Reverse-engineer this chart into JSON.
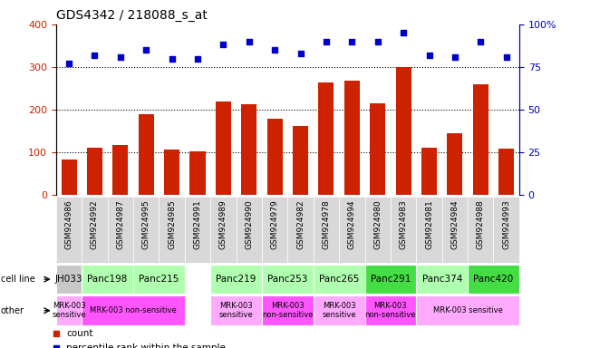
{
  "title": "GDS4342 / 218088_s_at",
  "gsm_labels": [
    "GSM924986",
    "GSM924992",
    "GSM924987",
    "GSM924995",
    "GSM924985",
    "GSM924991",
    "GSM924989",
    "GSM924990",
    "GSM924979",
    "GSM924982",
    "GSM924978",
    "GSM924994",
    "GSM924980",
    "GSM924983",
    "GSM924981",
    "GSM924984",
    "GSM924988",
    "GSM924993"
  ],
  "counts": [
    83,
    110,
    118,
    190,
    107,
    103,
    220,
    212,
    178,
    162,
    263,
    268,
    215,
    300,
    110,
    145,
    260,
    108
  ],
  "percentiles": [
    77,
    82,
    81,
    85,
    80,
    80,
    88,
    90,
    85,
    83,
    90,
    90,
    90,
    95,
    82,
    81,
    90,
    81
  ],
  "cell_line_groups": [
    {
      "label": "JH033",
      "start": 0,
      "end": 1,
      "color": "#c8c8c8"
    },
    {
      "label": "Panc198",
      "start": 1,
      "end": 3,
      "color": "#b0ffb0"
    },
    {
      "label": "Panc215",
      "start": 3,
      "end": 5,
      "color": "#b0ffb0"
    },
    {
      "label": "Panc219",
      "start": 6,
      "end": 8,
      "color": "#b0ffb0"
    },
    {
      "label": "Panc253",
      "start": 8,
      "end": 10,
      "color": "#b0ffb0"
    },
    {
      "label": "Panc265",
      "start": 10,
      "end": 12,
      "color": "#b0ffb0"
    },
    {
      "label": "Panc291",
      "start": 12,
      "end": 14,
      "color": "#44dd44"
    },
    {
      "label": "Panc374",
      "start": 14,
      "end": 16,
      "color": "#b0ffb0"
    },
    {
      "label": "Panc420",
      "start": 16,
      "end": 18,
      "color": "#44dd44"
    }
  ],
  "other_groups": [
    {
      "label": "MRK-003\nsensitive",
      "start": 0,
      "end": 1,
      "color": "#ffaaff"
    },
    {
      "label": "MRK-003 non-sensitive",
      "start": 1,
      "end": 5,
      "color": "#ff55ff"
    },
    {
      "label": "MRK-003\nsensitive",
      "start": 6,
      "end": 8,
      "color": "#ffaaff"
    },
    {
      "label": "MRK-003\nnon-sensitive",
      "start": 8,
      "end": 10,
      "color": "#ff55ff"
    },
    {
      "label": "MRK-003\nsensitive",
      "start": 10,
      "end": 12,
      "color": "#ffaaff"
    },
    {
      "label": "MRK-003\nnon-sensitive",
      "start": 12,
      "end": 14,
      "color": "#ff55ff"
    },
    {
      "label": "MRK-003 sensitive",
      "start": 14,
      "end": 18,
      "color": "#ffaaff"
    }
  ],
  "bar_color": "#cc2200",
  "dot_color": "#0000cc",
  "left_ylim": [
    0,
    400
  ],
  "left_yticks": [
    0,
    100,
    200,
    300,
    400
  ],
  "right_ylim": [
    0,
    100
  ],
  "right_yticks": [
    0,
    25,
    50,
    75,
    100
  ],
  "right_yticklabels": [
    "0",
    "25",
    "50",
    "75",
    "100%"
  ],
  "grid_values": [
    100,
    200,
    300
  ],
  "chart_bg": "#ffffff",
  "tick_area_bg": "#d8d8d8"
}
